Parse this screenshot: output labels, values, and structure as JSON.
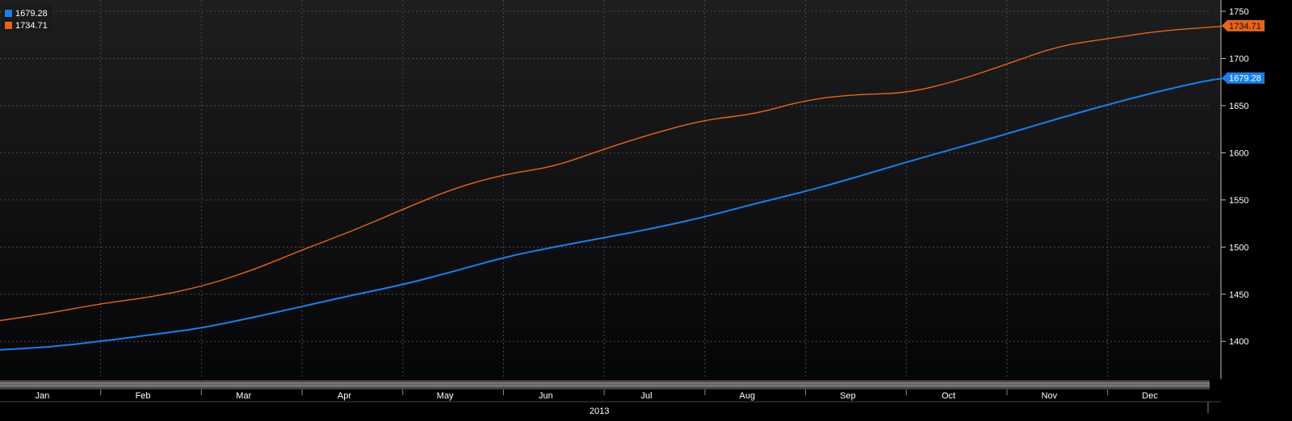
{
  "chart_data": {
    "type": "line",
    "title": "",
    "xlabel": "",
    "ylabel": "",
    "year_label": "2013",
    "x_ticks": [
      "Jan",
      "Feb",
      "Mar",
      "Apr",
      "May",
      "Jun",
      "Jul",
      "Aug",
      "Sep",
      "Oct",
      "Nov",
      "Dec"
    ],
    "y_ticks": [
      1400,
      1450,
      1500,
      1550,
      1600,
      1650,
      1700,
      1750
    ],
    "ylim": [
      1360,
      1762
    ],
    "xlim": [
      0,
      12.3
    ],
    "grid": true,
    "legend_position": "top-left",
    "series": [
      {
        "name": "1679.28",
        "last_label": "1679.28",
        "color": "#1a7fe8",
        "x": [
          0,
          0.5,
          1,
          1.5,
          2,
          2.5,
          3,
          3.5,
          4,
          4.5,
          5,
          5.5,
          6,
          6.5,
          7,
          7.5,
          8,
          8.5,
          9,
          9.5,
          10,
          10.5,
          11,
          11.5,
          12,
          12.2
        ],
        "values": [
          1391,
          1394,
          1400,
          1407,
          1414,
          1425,
          1437,
          1449,
          1460,
          1474,
          1489,
          1500,
          1510,
          1520,
          1532,
          1546,
          1559,
          1574,
          1590,
          1605,
          1620,
          1636,
          1651,
          1665,
          1677,
          1679.28
        ]
      },
      {
        "name": "1734.71",
        "last_label": "1734.71",
        "color": "#e8641a",
        "x": [
          0,
          0.5,
          1,
          1.5,
          2,
          2.5,
          3,
          3.5,
          4,
          4.5,
          5,
          5.5,
          6,
          6.5,
          7,
          7.5,
          8,
          8.5,
          9,
          9.5,
          10,
          10.5,
          11,
          11.5,
          12,
          12.2
        ],
        "values": [
          1422,
          1430,
          1440,
          1447,
          1458,
          1475,
          1497,
          1517,
          1540,
          1562,
          1577,
          1585,
          1604,
          1621,
          1635,
          1641,
          1656,
          1662,
          1663,
          1676,
          1694,
          1713,
          1721,
          1729,
          1733,
          1734.71
        ]
      }
    ]
  }
}
